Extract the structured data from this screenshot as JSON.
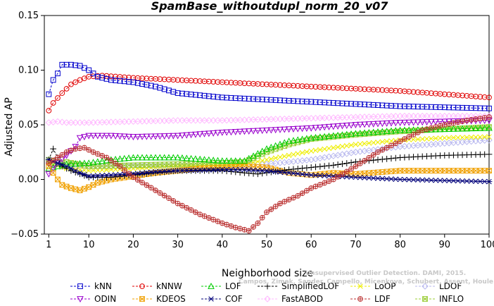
{
  "watermark": {
    "line1": "Campos, Zimek, Sander, Campello, Micenkova, Schubert, Assent, Houle",
    "line2": "Unsupervised Outlier Detection. DAMI, 2015."
  },
  "chart_data": {
    "type": "line",
    "title": "SpamBase_withoutdupl_norm_20_v07",
    "xlabel": "Neighborhood size",
    "ylabel": "Adjusted AP",
    "xlim": [
      0,
      100
    ],
    "ylim": [
      -0.05,
      0.15
    ],
    "x_ticks": [
      1,
      10,
      20,
      30,
      40,
      50,
      60,
      70,
      80,
      90,
      100
    ],
    "x_tick_labels": [
      "1",
      "10",
      "20",
      "30",
      "40",
      "50",
      "60",
      "70",
      "80",
      "90",
      "100"
    ],
    "y_ticks": [
      -0.05,
      0,
      0.05,
      0.1,
      0.15
    ],
    "y_tick_labels": [
      "−0.05",
      "0.00",
      "0.05",
      "0.10",
      "0.15"
    ],
    "grid": false,
    "legend_position": "bottom",
    "series": [
      {
        "name": "kNN",
        "color": "#0000cc",
        "marker": "square",
        "points": [
          [
            1,
            0.078
          ],
          [
            2,
            0.091
          ],
          [
            3,
            0.097
          ],
          [
            4,
            0.105
          ],
          [
            6,
            0.105
          ],
          [
            8,
            0.104
          ],
          [
            10,
            0.1
          ],
          [
            12,
            0.094
          ],
          [
            15,
            0.091
          ],
          [
            20,
            0.089
          ],
          [
            25,
            0.085
          ],
          [
            30,
            0.079
          ],
          [
            40,
            0.075
          ],
          [
            50,
            0.073
          ],
          [
            60,
            0.071
          ],
          [
            70,
            0.069
          ],
          [
            80,
            0.067
          ],
          [
            90,
            0.066
          ],
          [
            100,
            0.065
          ]
        ]
      },
      {
        "name": "kNNW",
        "color": "#e00000",
        "marker": "circle",
        "points": [
          [
            1,
            0.063
          ],
          [
            2,
            0.07
          ],
          [
            4,
            0.079
          ],
          [
            6,
            0.087
          ],
          [
            8,
            0.091
          ],
          [
            10,
            0.094
          ],
          [
            13,
            0.095
          ],
          [
            20,
            0.093
          ],
          [
            30,
            0.091
          ],
          [
            40,
            0.089
          ],
          [
            50,
            0.087
          ],
          [
            60,
            0.085
          ],
          [
            70,
            0.083
          ],
          [
            80,
            0.081
          ],
          [
            90,
            0.078
          ],
          [
            100,
            0.075
          ]
        ]
      },
      {
        "name": "LOF",
        "color": "#00cc00",
        "marker": "triangle",
        "points": [
          [
            1,
            0.01
          ],
          [
            3,
            0.012
          ],
          [
            5,
            0.014
          ],
          [
            10,
            0.015
          ],
          [
            15,
            0.018
          ],
          [
            20,
            0.02
          ],
          [
            30,
            0.02
          ],
          [
            40,
            0.017
          ],
          [
            45,
            0.017
          ],
          [
            50,
            0.028
          ],
          [
            55,
            0.035
          ],
          [
            60,
            0.038
          ],
          [
            65,
            0.04
          ],
          [
            70,
            0.042
          ],
          [
            80,
            0.045
          ],
          [
            90,
            0.046
          ],
          [
            100,
            0.047
          ]
        ]
      },
      {
        "name": "SimplifiedLOF",
        "color": "#000000",
        "marker": "plus",
        "points": [
          [
            1,
            0.018
          ],
          [
            2,
            0.028
          ],
          [
            4,
            0.012
          ],
          [
            6,
            0.008
          ],
          [
            10,
            0.002
          ],
          [
            15,
            0.002
          ],
          [
            20,
            0.004
          ],
          [
            25,
            0.006
          ],
          [
            30,
            0.008
          ],
          [
            35,
            0.008
          ],
          [
            40,
            0.008
          ],
          [
            45,
            0.006
          ],
          [
            48,
            0.005
          ],
          [
            55,
            0.009
          ],
          [
            60,
            0.011
          ],
          [
            65,
            0.013
          ],
          [
            70,
            0.016
          ],
          [
            75,
            0.018
          ],
          [
            80,
            0.02
          ],
          [
            85,
            0.021
          ],
          [
            90,
            0.022
          ],
          [
            100,
            0.023
          ]
        ]
      },
      {
        "name": "LoOP",
        "color": "#eeee00",
        "marker": "x",
        "points": [
          [
            1,
            0.015
          ],
          [
            5,
            0.01
          ],
          [
            10,
            0.008
          ],
          [
            20,
            0.01
          ],
          [
            30,
            0.012
          ],
          [
            40,
            0.013
          ],
          [
            45,
            0.014
          ],
          [
            50,
            0.018
          ],
          [
            55,
            0.022
          ],
          [
            60,
            0.026
          ],
          [
            70,
            0.032
          ],
          [
            80,
            0.036
          ],
          [
            90,
            0.038
          ],
          [
            100,
            0.039
          ]
        ]
      },
      {
        "name": "LDOF",
        "color": "#b8b8ee",
        "marker": "diamond",
        "points": [
          [
            1,
            0.015
          ],
          [
            10,
            0.012
          ],
          [
            20,
            0.012
          ],
          [
            30,
            0.012
          ],
          [
            40,
            0.013
          ],
          [
            50,
            0.014
          ],
          [
            60,
            0.018
          ],
          [
            70,
            0.025
          ],
          [
            80,
            0.03
          ],
          [
            90,
            0.033
          ],
          [
            100,
            0.036
          ]
        ]
      },
      {
        "name": "ODIN",
        "color": "#9900cc",
        "marker": "triangle-down",
        "points": [
          [
            1,
            0.005
          ],
          [
            3,
            0.015
          ],
          [
            5,
            0.022
          ],
          [
            7,
            0.03
          ],
          [
            8,
            0.038
          ],
          [
            10,
            0.04
          ],
          [
            15,
            0.04
          ],
          [
            20,
            0.039
          ],
          [
            30,
            0.04
          ],
          [
            40,
            0.043
          ],
          [
            45,
            0.044
          ],
          [
            50,
            0.045
          ],
          [
            60,
            0.047
          ],
          [
            70,
            0.05
          ],
          [
            80,
            0.052
          ],
          [
            90,
            0.053
          ],
          [
            100,
            0.054
          ]
        ]
      },
      {
        "name": "KDEOS",
        "color": "#f0a000",
        "marker": "square-x",
        "points": [
          [
            1,
            0.012
          ],
          [
            3,
            0.0
          ],
          [
            4,
            -0.005
          ],
          [
            6,
            -0.008
          ],
          [
            8,
            -0.01
          ],
          [
            10,
            -0.007
          ],
          [
            12,
            -0.003
          ],
          [
            15,
            0.0
          ],
          [
            20,
            0.003
          ],
          [
            25,
            0.006
          ],
          [
            30,
            0.008
          ],
          [
            35,
            0.01
          ],
          [
            40,
            0.011
          ],
          [
            45,
            0.012
          ],
          [
            50,
            0.011
          ],
          [
            55,
            0.006
          ],
          [
            60,
            0.004
          ],
          [
            65,
            0.006
          ],
          [
            70,
            0.005
          ],
          [
            80,
            0.008
          ],
          [
            90,
            0.008
          ],
          [
            100,
            0.008
          ]
        ]
      },
      {
        "name": "COF",
        "color": "#00007a",
        "marker": "asterisk",
        "points": [
          [
            1,
            0.018
          ],
          [
            3,
            0.015
          ],
          [
            5,
            0.012
          ],
          [
            8,
            0.006
          ],
          [
            10,
            0.003
          ],
          [
            15,
            0.004
          ],
          [
            20,
            0.005
          ],
          [
            25,
            0.007
          ],
          [
            30,
            0.008
          ],
          [
            40,
            0.009
          ],
          [
            45,
            0.009
          ],
          [
            50,
            0.008
          ],
          [
            55,
            0.006
          ],
          [
            60,
            0.004
          ],
          [
            70,
            0.002
          ],
          [
            80,
            0.0
          ],
          [
            90,
            -0.001
          ],
          [
            100,
            -0.002
          ]
        ]
      },
      {
        "name": "FastABOD",
        "color": "#ffb8ff",
        "marker": "diamond",
        "points": [
          [
            1,
            0.052
          ],
          [
            3,
            0.053
          ],
          [
            5,
            0.052
          ],
          [
            10,
            0.052
          ],
          [
            20,
            0.053
          ],
          [
            30,
            0.054
          ],
          [
            40,
            0.054
          ],
          [
            50,
            0.055
          ],
          [
            60,
            0.056
          ],
          [
            70,
            0.057
          ],
          [
            80,
            0.058
          ],
          [
            90,
            0.058
          ],
          [
            100,
            0.058
          ]
        ]
      },
      {
        "name": "LDF",
        "color": "#bb3333",
        "marker": "circle-plus",
        "points": [
          [
            1,
            0.015
          ],
          [
            3,
            0.02
          ],
          [
            5,
            0.025
          ],
          [
            7,
            0.028
          ],
          [
            9,
            0.029
          ],
          [
            11,
            0.025
          ],
          [
            14,
            0.02
          ],
          [
            17,
            0.012
          ],
          [
            20,
            0.002
          ],
          [
            25,
            -0.01
          ],
          [
            30,
            -0.022
          ],
          [
            35,
            -0.032
          ],
          [
            40,
            -0.04
          ],
          [
            43,
            -0.044
          ],
          [
            46,
            -0.047
          ],
          [
            48,
            -0.04
          ],
          [
            50,
            -0.03
          ],
          [
            53,
            -0.022
          ],
          [
            57,
            -0.015
          ],
          [
            60,
            -0.008
          ],
          [
            65,
            0.0
          ],
          [
            70,
            0.012
          ],
          [
            75,
            0.025
          ],
          [
            80,
            0.035
          ],
          [
            85,
            0.045
          ],
          [
            90,
            0.05
          ],
          [
            95,
            0.054
          ],
          [
            100,
            0.057
          ]
        ]
      },
      {
        "name": "INFLO",
        "color": "#99cc33",
        "marker": "square-x",
        "points": [
          [
            1,
            0.018
          ],
          [
            3,
            0.015
          ],
          [
            5,
            0.016
          ],
          [
            10,
            0.012
          ],
          [
            20,
            0.013
          ],
          [
            30,
            0.014
          ],
          [
            40,
            0.015
          ],
          [
            45,
            0.016
          ],
          [
            50,
            0.025
          ],
          [
            55,
            0.032
          ],
          [
            60,
            0.037
          ],
          [
            70,
            0.041
          ],
          [
            80,
            0.044
          ],
          [
            90,
            0.046
          ],
          [
            100,
            0.048
          ]
        ]
      }
    ]
  }
}
